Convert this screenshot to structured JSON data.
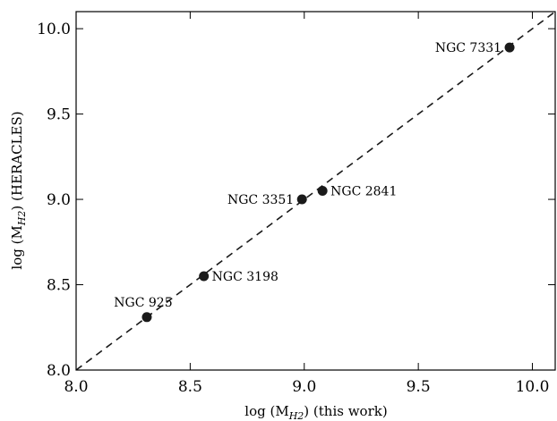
{
  "chart_data": {
    "type": "scatter",
    "title": "",
    "xlabel": {
      "pre": "log (M",
      "sub": "H2",
      "post": ") (this work)"
    },
    "ylabel": {
      "pre": "log (M",
      "sub": "H2",
      "post": ") (HERACLES)"
    },
    "xlim": [
      8.0,
      10.1
    ],
    "ylim": [
      8.0,
      10.1
    ],
    "xticks": [
      "8.0",
      "8.5",
      "9.0",
      "9.5",
      "10.0"
    ],
    "yticks": [
      "8.0",
      "8.5",
      "9.0",
      "9.5",
      "10.0"
    ],
    "grid": false,
    "reference_line": {
      "style": "dashed",
      "slope": 1,
      "intercept": 0
    },
    "points": [
      {
        "name": "NGC 925",
        "x": 8.31,
        "y": 8.31,
        "label_pos": "above-left"
      },
      {
        "name": "NGC 3198",
        "x": 8.56,
        "y": 8.55,
        "label_pos": "right"
      },
      {
        "name": "NGC 3351",
        "x": 8.99,
        "y": 9.0,
        "label_pos": "left"
      },
      {
        "name": "NGC 2841",
        "x": 9.08,
        "y": 9.05,
        "label_pos": "right"
      },
      {
        "name": "NGC 7331",
        "x": 9.9,
        "y": 9.89,
        "label_pos": "left"
      }
    ],
    "colors": {
      "marker": "#1a1a1a",
      "line": "#1a1a1a",
      "axes": "#000000"
    }
  }
}
